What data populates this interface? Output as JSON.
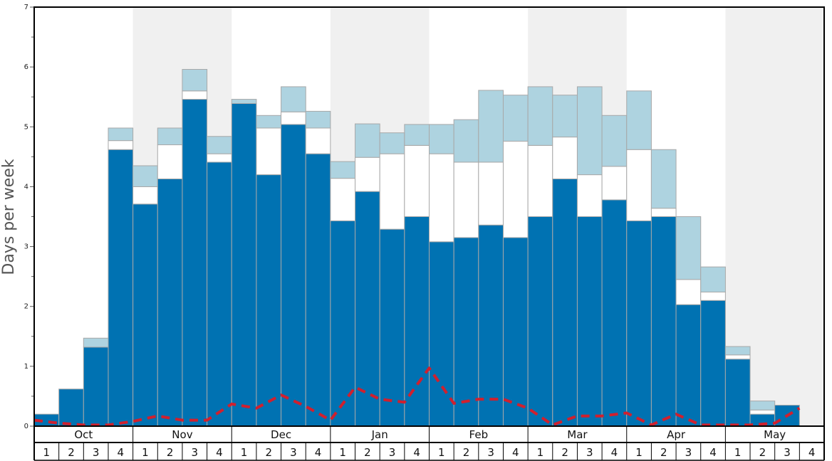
{
  "chart_data": {
    "type": "bar",
    "stacked": true,
    "ylabel": "Days per week",
    "ylim": [
      0,
      7
    ],
    "yticks": [
      "0",
      "1",
      "2",
      "3",
      "4",
      "5",
      "6",
      "7"
    ],
    "months": [
      "Oct",
      "Nov",
      "Dec",
      "Jan",
      "Feb",
      "Mar",
      "Apr",
      "May"
    ],
    "weeks": [
      "1",
      "2",
      "3",
      "4"
    ],
    "shaded_months": [
      "Nov",
      "Jan",
      "Mar",
      "May"
    ],
    "colors": {
      "series1": "#0072b2",
      "series2": "#ffffff",
      "series3": "#aed3e0",
      "bar_border": "#a8a8a8",
      "line": "#d0202e",
      "band": "#f0f0f0"
    },
    "series": [
      {
        "values": [
          0.2,
          0.62,
          1.32,
          4.62,
          3.71,
          4.13,
          5.46,
          4.41,
          5.39,
          4.2,
          5.04,
          4.55,
          3.43,
          3.92,
          3.29,
          3.5,
          3.08,
          3.15,
          3.36,
          3.15,
          3.5,
          4.13,
          3.5,
          3.78,
          3.43,
          3.5,
          2.03,
          2.1,
          1.12,
          0.2,
          0.35,
          0
        ]
      },
      {
        "values": [
          0,
          0,
          0,
          0.15,
          0.29,
          0.57,
          0.14,
          0.14,
          0,
          0.78,
          0.21,
          0.43,
          0.71,
          0.57,
          1.26,
          1.19,
          1.47,
          1.26,
          1.05,
          1.61,
          1.19,
          0.7,
          0.7,
          0.56,
          1.19,
          0.14,
          0.42,
          0.14,
          0.07,
          0.07,
          0,
          0
        ]
      },
      {
        "values": [
          0,
          0,
          0.15,
          0.21,
          0.35,
          0.28,
          0.36,
          0.29,
          0.07,
          0.21,
          0.42,
          0.28,
          0.28,
          0.56,
          0.35,
          0.35,
          0.49,
          0.71,
          1.2,
          0.77,
          0.98,
          0.7,
          1.47,
          0.85,
          0.98,
          0.98,
          1.05,
          0.42,
          0.14,
          0.15,
          0,
          0
        ]
      }
    ],
    "line": {
      "style": "dashed",
      "values": [
        0.1,
        0.05,
        0.02,
        0.02,
        0.08,
        0.17,
        0.1,
        0.1,
        0.37,
        0.3,
        0.52,
        0.33,
        0.1,
        0.65,
        0.45,
        0.4,
        0.97,
        0.38,
        0.45,
        0.45,
        0.3,
        0.02,
        0.17,
        0.17,
        0.22,
        0.02,
        0.2,
        0.02,
        0.02,
        0.02,
        0.05,
        0.3
      ]
    }
  }
}
